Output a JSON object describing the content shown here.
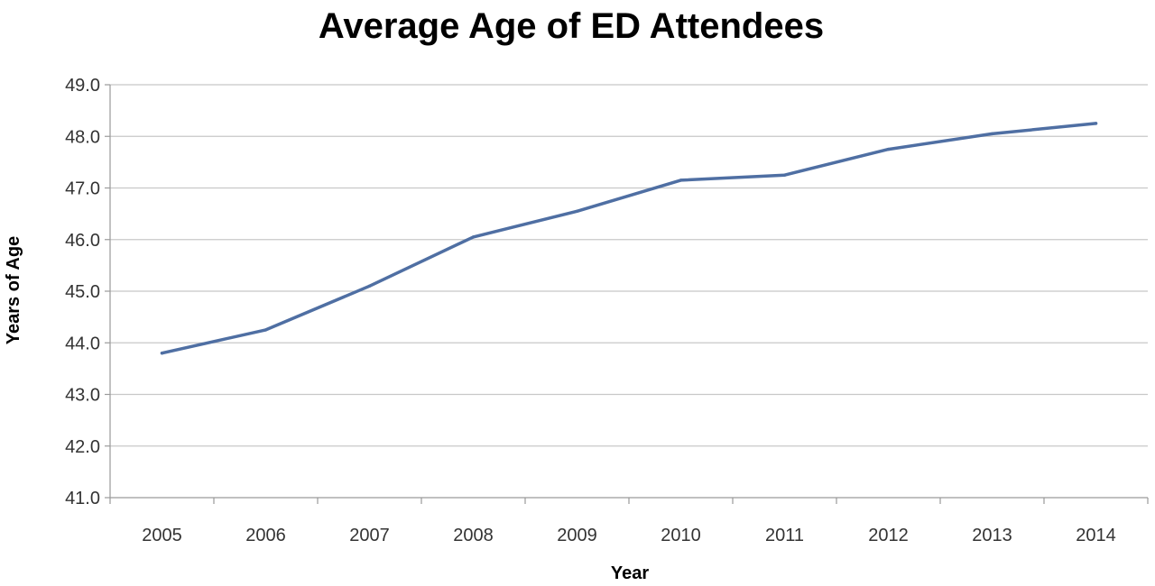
{
  "chart_data": {
    "type": "line",
    "title": "Average Age of ED Attendees",
    "xlabel": "Year",
    "ylabel": "Years of Age",
    "categories": [
      "2005",
      "2006",
      "2007",
      "2008",
      "2009",
      "2010",
      "2011",
      "2012",
      "2013",
      "2014"
    ],
    "series": [
      {
        "values": [
          43.8,
          44.25,
          45.1,
          46.05,
          46.55,
          47.15,
          47.25,
          47.75,
          48.05,
          48.25
        ],
        "color": "#4f6fa3"
      }
    ],
    "ylim": [
      41.0,
      49.0
    ],
    "yticks": [
      41.0,
      42.0,
      43.0,
      44.0,
      45.0,
      46.0,
      47.0,
      48.0,
      49.0
    ],
    "ytick_labels": [
      "41.0",
      "42.0",
      "43.0",
      "44.0",
      "45.0",
      "46.0",
      "47.0",
      "48.0",
      "49.0"
    ],
    "grid": true,
    "legend": "none"
  }
}
